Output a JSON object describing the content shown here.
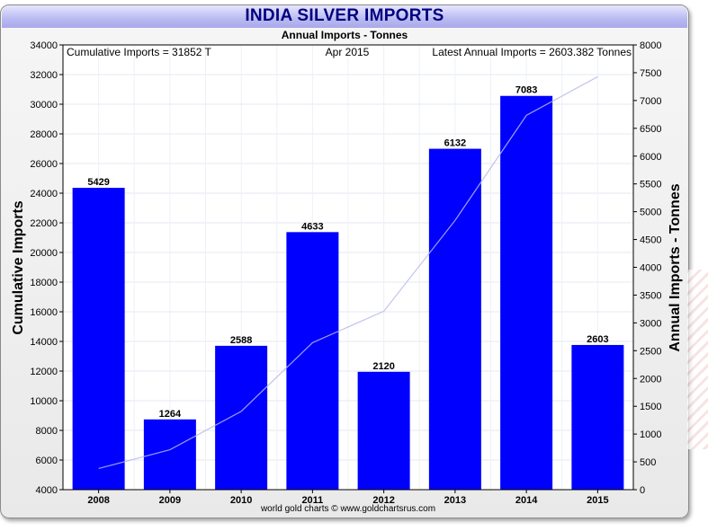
{
  "chart_data": {
    "type": "bar",
    "title": "INDIA SILVER IMPORTS",
    "subtitle": "Annual Imports - Tonnes",
    "categories": [
      "2008",
      "2009",
      "2010",
      "2011",
      "2012",
      "2013",
      "2014",
      "2015"
    ],
    "series": [
      {
        "name": "Annual Imports - Tonnes",
        "axis": "right",
        "type": "bar",
        "color": "#0000ff",
        "values": [
          5429,
          1264,
          2588,
          4633,
          2120,
          6132,
          7083,
          2603
        ],
        "labels": [
          "5429",
          "1264",
          "2588",
          "4633",
          "2120",
          "6132",
          "7083",
          "2603"
        ]
      },
      {
        "name": "Cumulative Imports",
        "axis": "left",
        "type": "line",
        "color": "#b8b8ec",
        "values": [
          5429,
          6693,
          9281,
          13914,
          16034,
          22166,
          29249,
          31852
        ]
      }
    ],
    "ylabel_left": "Cumulative Imports",
    "ylabel_right": "Annual Imports - Tonnes",
    "ylim_left": [
      4000,
      34000
    ],
    "yticks_left": [
      4000,
      6000,
      8000,
      10000,
      12000,
      14000,
      16000,
      18000,
      20000,
      22000,
      24000,
      26000,
      28000,
      30000,
      32000,
      34000
    ],
    "ylim_right": [
      0,
      8000
    ],
    "yticks_right": [
      0,
      500,
      1000,
      1500,
      2000,
      2500,
      3000,
      3500,
      4000,
      4500,
      5000,
      5500,
      6000,
      6500,
      7000,
      7500,
      8000
    ],
    "grid": true,
    "annotations": {
      "cumulative": "Cumulative Imports = 31852 T",
      "date": "Apr 2015",
      "latest": "Latest Annual Imports = 2603.382 Tonnes"
    },
    "credit": "world gold charts © www.goldchartsrus.com"
  }
}
